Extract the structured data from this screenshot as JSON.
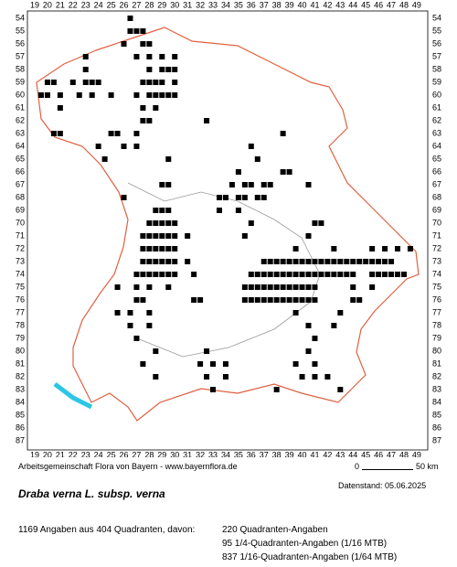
{
  "map": {
    "columns": [
      19,
      20,
      21,
      22,
      23,
      24,
      25,
      26,
      27,
      28,
      29,
      30,
      31,
      32,
      33,
      34,
      35,
      36,
      37,
      38,
      39,
      40,
      41,
      42,
      43,
      44,
      45,
      46,
      47,
      48,
      49
    ],
    "rows": [
      54,
      55,
      56,
      57,
      58,
      59,
      60,
      61,
      62,
      63,
      64,
      65,
      66,
      67,
      68,
      69,
      70,
      71,
      72,
      73,
      74,
      75,
      76,
      77,
      78,
      79,
      80,
      81,
      82,
      83,
      84,
      85,
      86,
      87
    ],
    "occurrences": [
      {
        "row": 54,
        "cols": [
          26.5
        ]
      },
      {
        "row": 55,
        "cols": [
          26.5,
          27,
          27.5
        ]
      },
      {
        "row": 56,
        "cols": [
          26,
          27.5,
          28
        ]
      },
      {
        "row": 57,
        "cols": [
          23,
          27,
          28,
          29,
          30
        ]
      },
      {
        "row": 58,
        "cols": [
          23,
          28,
          29,
          29.5,
          30
        ]
      },
      {
        "row": 59,
        "cols": [
          20,
          20.5,
          22,
          23,
          23.5,
          24,
          27.5,
          28,
          28.5,
          29,
          30
        ]
      },
      {
        "row": 60,
        "cols": [
          19.5,
          20,
          21,
          22.5,
          23.5,
          25,
          27,
          28,
          28.5,
          29,
          29.5,
          30
        ]
      },
      {
        "row": 61,
        "cols": [
          21,
          27.5,
          28.5
        ]
      },
      {
        "row": 62,
        "cols": [
          27.5,
          28,
          32.5
        ]
      },
      {
        "row": 63,
        "cols": [
          20.5,
          21,
          25,
          25.5,
          27,
          38.5
        ]
      },
      {
        "row": 64,
        "cols": [
          24,
          26,
          27,
          36
        ]
      },
      {
        "row": 65,
        "cols": [
          24.5,
          29.5,
          36.5
        ]
      },
      {
        "row": 66,
        "cols": [
          35,
          38.5,
          39
        ]
      },
      {
        "row": 67,
        "cols": [
          29,
          29.5,
          34.5,
          35.5,
          36,
          37,
          37.5,
          40.5
        ]
      },
      {
        "row": 68,
        "cols": [
          26,
          33.5,
          34,
          35,
          35.5,
          36.5,
          37
        ]
      },
      {
        "row": 69,
        "cols": [
          28.5,
          29,
          29.5,
          33.5,
          35
        ]
      },
      {
        "row": 70,
        "cols": [
          28,
          28.5,
          29,
          29.5,
          30,
          36,
          41,
          41.5
        ]
      },
      {
        "row": 71,
        "cols": [
          27.5,
          28,
          28.5,
          29,
          29.5,
          30,
          31,
          35.5,
          40.5
        ]
      },
      {
        "row": 72,
        "cols": [
          27.5,
          28,
          28.5,
          29,
          29.5,
          30,
          39.5,
          42.5,
          45.5,
          46.5,
          47.5,
          48.5
        ]
      },
      {
        "row": 73,
        "cols": [
          27.5,
          28,
          28.5,
          29,
          29.5,
          30,
          31,
          37,
          37.5,
          38,
          38.5,
          39,
          39.5,
          40,
          40.5,
          41,
          41.5,
          42,
          42.5,
          43,
          43.5,
          44,
          44.5,
          45,
          45.5,
          46,
          46.5,
          47
        ]
      },
      {
        "row": 74,
        "cols": [
          27,
          27.5,
          28,
          28.5,
          29,
          29.5,
          30,
          31.5,
          36,
          36.5,
          37,
          37.5,
          38,
          38.5,
          39,
          39.5,
          40,
          40.5,
          41,
          41.5,
          42,
          42.5,
          43,
          43.5,
          44,
          45.5,
          46,
          46.5,
          47,
          47.5,
          48
        ]
      },
      {
        "row": 75,
        "cols": [
          25.5,
          27,
          28,
          29.5,
          35.5,
          36,
          36.5,
          37,
          37.5,
          38,
          38.5,
          39,
          39.5,
          40,
          40.5,
          41,
          44,
          45.5
        ]
      },
      {
        "row": 76,
        "cols": [
          27,
          27.5,
          31.5,
          32,
          35.5,
          36,
          36.5,
          37,
          37.5,
          38,
          38.5,
          39,
          39.5,
          40,
          40.5,
          41,
          44,
          44.5
        ]
      },
      {
        "row": 77,
        "cols": [
          25.5,
          26.5,
          28,
          39.5,
          43
        ]
      },
      {
        "row": 78,
        "cols": [
          26.5,
          28,
          40.5,
          42.5
        ]
      },
      {
        "row": 79,
        "cols": [
          27,
          41
        ]
      },
      {
        "row": 80,
        "cols": [
          28.5,
          32.5,
          40.5
        ]
      },
      {
        "row": 81,
        "cols": [
          27.5,
          32,
          33,
          34,
          39.5,
          41
        ]
      },
      {
        "row": 82,
        "cols": [
          28.5,
          32.5,
          34,
          40,
          41,
          42
        ]
      },
      {
        "row": 83,
        "cols": [
          33,
          38,
          43
        ]
      }
    ]
  },
  "footer": {
    "credit": "Arbeitsgemeinschaft Flora von Bayern - www.bayernflora.de",
    "scale_start": "0",
    "scale_end": "50 km",
    "date": "Datenstand: 05.06.2025"
  },
  "title": "Draba verna L. subsp. verna",
  "summary": {
    "total": "1169 Angaben aus 404 Quadranten, davon:",
    "lines": [
      "220 Quadranten-Angaben",
      "95 1/4-Quadranten-Angaben (1/16 MTB)",
      "837 1/16-Quadranten-Angaben (1/64 MTB)"
    ]
  }
}
